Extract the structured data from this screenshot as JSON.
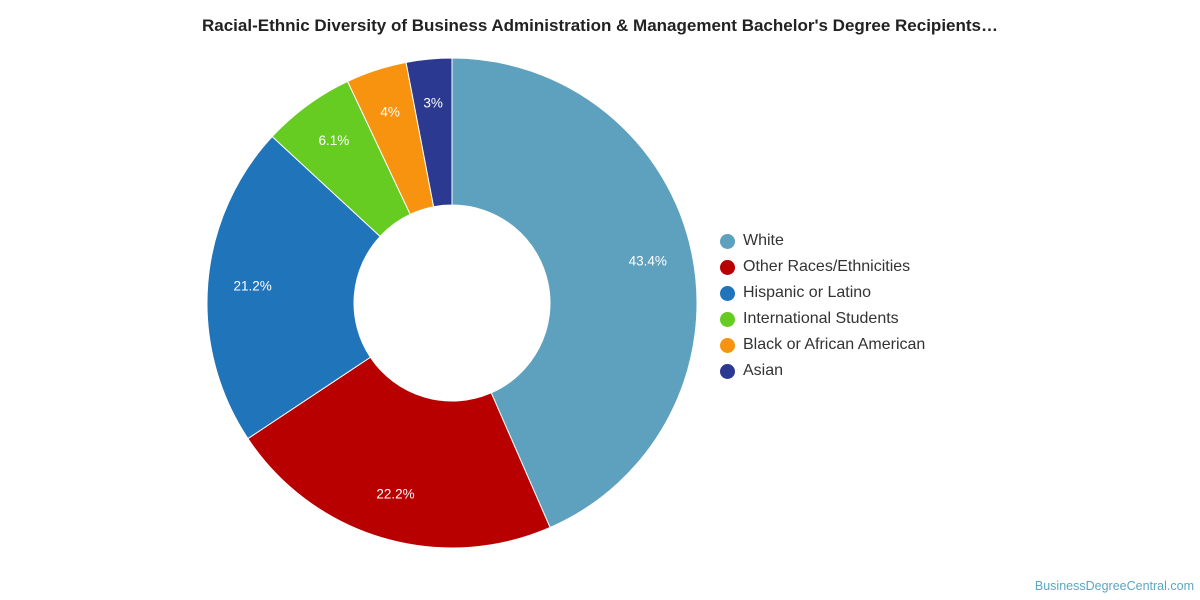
{
  "chart_data": {
    "type": "pie",
    "donut": true,
    "title": "Racial-Ethnic Diversity of Business Administration & Management Bachelor's Degree Recipients…",
    "legend_position": "right",
    "slices": [
      {
        "name": "White",
        "value": 43.4,
        "label": "43.4%",
        "color": "#5ea1be"
      },
      {
        "name": "Other Races/Ethnicities",
        "value": 22.2,
        "label": "22.2%",
        "color": "#b80000"
      },
      {
        "name": "Hispanic or Latino",
        "value": 21.2,
        "label": "21.2%",
        "color": "#1f74ba"
      },
      {
        "name": "International Students",
        "value": 6.1,
        "label": "6.1%",
        "color": "#66cc22"
      },
      {
        "name": "Black or African American",
        "value": 4.0,
        "label": "4%",
        "color": "#f7930f"
      },
      {
        "name": "Asian",
        "value": 3.0,
        "label": "3%",
        "color": "#2b3990"
      }
    ]
  },
  "credit": "BusinessDegreeCentral.com"
}
